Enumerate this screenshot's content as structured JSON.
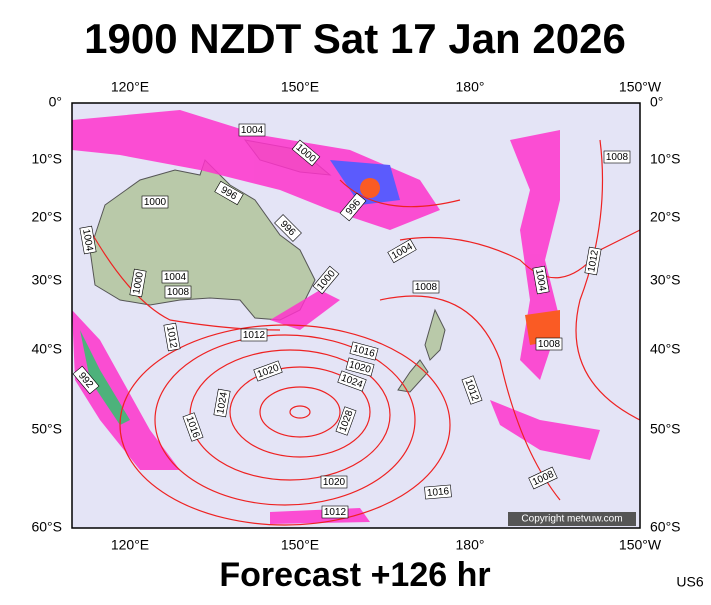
{
  "title": "1900 NZDT Sat 17 Jan 2026",
  "footer": "Forecast +126 hr",
  "corner_code": "US6",
  "copyright": "Copyright metvuw.com",
  "lon_labels": [
    "120°E",
    "150°E",
    "180°",
    "150°W"
  ],
  "lat_labels": [
    "0°",
    "10°S",
    "20°S",
    "30°S",
    "40°S",
    "50°S",
    "60°S"
  ],
  "isobar_labels": [
    "1004",
    "1000",
    "996",
    "1000",
    "996",
    "996",
    "1004",
    "1000",
    "1004",
    "1008",
    "1000",
    "1004",
    "1008",
    "1008",
    "1012",
    "1004",
    "1008",
    "1012",
    "1012",
    "1016",
    "1020",
    "1020",
    "1024",
    "992",
    "1024",
    "1028",
    "1012",
    "1016",
    "1020",
    "1016",
    "1008",
    "1012"
  ]
}
